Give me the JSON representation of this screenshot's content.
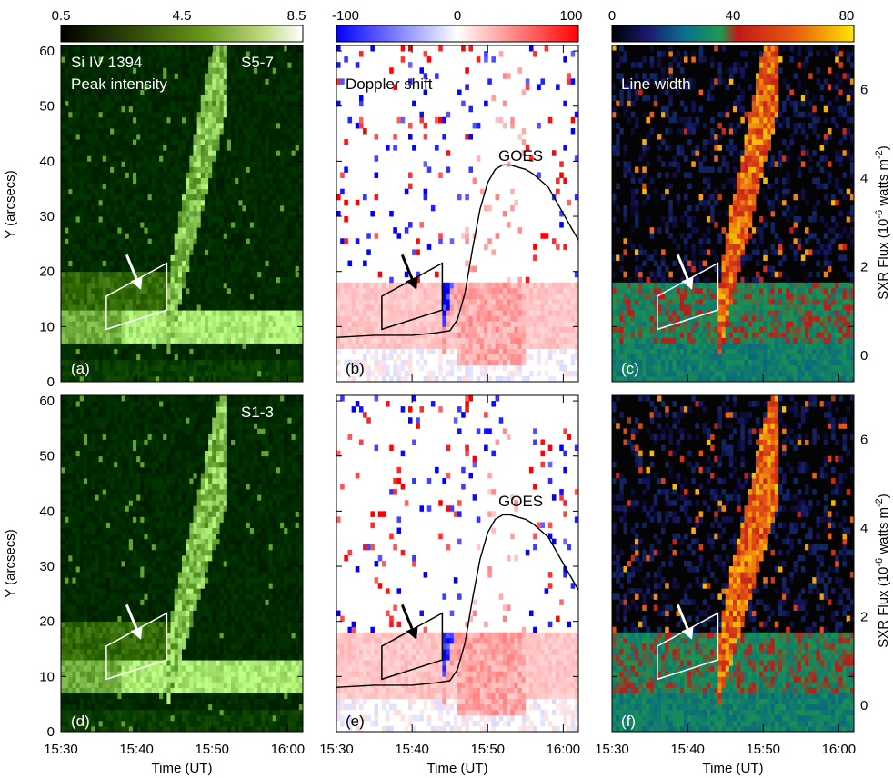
{
  "chart_data": [
    {
      "type": "heatmap",
      "panel": "(a)",
      "quantity": "Peak intensity",
      "line_label": "Si IV 1394",
      "slit_label": "S5-7",
      "colormap": "green",
      "colorbar": {
        "ticks": [
          "0.5",
          "4.5",
          "8.5"
        ],
        "range": [
          0.5,
          8.5
        ]
      },
      "xlabel": "Time (UT)",
      "ylabel": "Y (arcsecs)",
      "ylim": [
        0,
        61
      ],
      "yticks": [
        "0",
        "10",
        "20",
        "30",
        "40",
        "50",
        "60"
      ],
      "xticks": [
        "15:30",
        "15:40",
        "15:50",
        "16:00"
      ],
      "ribbons": [
        {
          "t_start": "15:38",
          "t_end": "16:02",
          "y_center": 10.5,
          "width": 4,
          "value": 8.0
        },
        {
          "t_start": "15:30",
          "t_end": "16:02",
          "y_center": 5,
          "width": 1,
          "value": 3.0
        }
      ],
      "ejecta": [
        {
          "t_start": "15:44",
          "t_end": "15:52",
          "y_start": 12,
          "y_end": 60,
          "value": 6.5
        }
      ],
      "arrow": {
        "from": [
          38.7,
          23
        ],
        "to": [
          40.5,
          17
        ]
      },
      "box": [
        [
          36,
          9.5
        ],
        [
          44,
          13
        ],
        [
          44,
          21.5
        ],
        [
          36,
          15.5
        ]
      ]
    },
    {
      "type": "heatmap",
      "panel": "(b)",
      "quantity": "Doppler shift",
      "colormap": "blue-white-red",
      "colorbar": {
        "ticks": [
          "-100",
          "0",
          "100"
        ],
        "range": [
          -100,
          100
        ]
      },
      "xlabel": "Time (UT)",
      "ylim": [
        0,
        61
      ],
      "xticks": [
        "15:30",
        "15:40",
        "15:50",
        "16:00"
      ],
      "ejecta": [
        {
          "t_start": "15:44",
          "t_end": "15:49",
          "y_start": 10,
          "y_end": 58,
          "value": -90
        },
        {
          "t_start": "15:47",
          "t_end": "15:55",
          "y_start": 5,
          "y_end": 45,
          "value": 35
        }
      ],
      "arrow": {
        "from": [
          38.7,
          23
        ],
        "to": [
          40.5,
          17
        ]
      },
      "box": [
        [
          36,
          9.5
        ],
        [
          44,
          13
        ],
        [
          44,
          21.5
        ],
        [
          36,
          15.5
        ]
      ],
      "goes_label": "GOES",
      "goes": {
        "t_min": [
          30,
          35,
          40,
          43,
          45,
          46,
          47,
          48,
          49,
          50,
          51,
          52,
          53,
          54,
          55,
          56,
          57,
          58,
          59,
          60,
          61,
          62
        ],
        "flux": [
          0.4,
          0.45,
          0.45,
          0.5,
          0.55,
          0.8,
          1.4,
          2.4,
          3.3,
          3.9,
          4.2,
          4.3,
          4.3,
          4.25,
          4.2,
          4.1,
          3.95,
          3.8,
          3.5,
          3.2,
          2.9,
          2.6
        ]
      }
    },
    {
      "type": "heatmap",
      "panel": "(c)",
      "quantity": "Line width",
      "colormap": "rainbow",
      "colorbar": {
        "ticks": [
          "0",
          "40",
          "80"
        ],
        "range": [
          0,
          80
        ]
      },
      "xlabel": "Time (UT)",
      "ylim": [
        0,
        61
      ],
      "xticks": [
        "15:30",
        "15:40",
        "15:50",
        "16:00"
      ],
      "y2label": "SXR Flux (10-6 watts m-2)",
      "y2ticks": [
        "0",
        "2",
        "4",
        "6"
      ],
      "y2lim": [
        -0.6,
        7.0
      ],
      "ejecta": [
        {
          "t_start": "15:44",
          "t_end": "15:50",
          "y_start": 6,
          "y_end": 60,
          "value": 60
        }
      ],
      "arrow": {
        "from": [
          38.7,
          23
        ],
        "to": [
          40.5,
          17
        ]
      },
      "box": [
        [
          36,
          9.5
        ],
        [
          44,
          13
        ],
        [
          44,
          21.5
        ],
        [
          36,
          15.5
        ]
      ]
    },
    {
      "type": "heatmap",
      "panel": "(d)",
      "quantity": "Peak intensity",
      "slit_label": "S1-3",
      "colormap": "green",
      "xlabel": "Time (UT)",
      "ylabel": "Y (arcsecs)",
      "ylim": [
        0,
        61
      ],
      "yticks": [
        "0",
        "10",
        "20",
        "30",
        "40",
        "50",
        "60"
      ],
      "xticks": [
        "15:30",
        "15:40",
        "15:50",
        "16:00"
      ],
      "arrow": {
        "from": [
          38.7,
          23
        ],
        "to": [
          40.5,
          17
        ]
      },
      "box": [
        [
          36,
          9.5
        ],
        [
          44,
          13
        ],
        [
          44,
          21.5
        ],
        [
          36,
          15.5
        ]
      ]
    },
    {
      "type": "heatmap",
      "panel": "(e)",
      "quantity": "Doppler shift",
      "colormap": "blue-white-red",
      "xlabel": "Time (UT)",
      "ylim": [
        0,
        61
      ],
      "xticks": [
        "15:30",
        "15:40",
        "15:50",
        "16:00"
      ],
      "arrow": {
        "from": [
          38.7,
          23
        ],
        "to": [
          40.5,
          17
        ]
      },
      "box": [
        [
          36,
          9.5
        ],
        [
          44,
          13
        ],
        [
          44,
          21.5
        ],
        [
          36,
          15.5
        ]
      ],
      "goes_label": "GOES"
    },
    {
      "type": "heatmap",
      "panel": "(f)",
      "quantity": "Line width",
      "colormap": "rainbow",
      "xlabel": "Time (UT)",
      "ylim": [
        0,
        61
      ],
      "xticks": [
        "15:30",
        "15:40",
        "15:50",
        "16:00"
      ],
      "y2label": "SXR Flux (10-6 watts m-2)",
      "y2ticks": [
        "0",
        "2",
        "4",
        "6"
      ],
      "y2lim": [
        -0.6,
        7.0
      ],
      "arrow": {
        "from": [
          38.7,
          23
        ],
        "to": [
          40.5,
          17
        ]
      },
      "box": [
        [
          36,
          9.5
        ],
        [
          44,
          13
        ],
        [
          44,
          21.5
        ],
        [
          36,
          15.5
        ]
      ]
    }
  ],
  "labels": {
    "si_iv": "Si IV 1394",
    "s57": "S5-7",
    "s13": "S1-3",
    "peak": "Peak intensity",
    "doppler": "Doppler shift",
    "width": "Line width",
    "goes": "GOES",
    "ylabel": "Y (arcsecs)",
    "xlabel": "Time (UT)",
    "sxr_a": "SXR Flux (10",
    "sxr_b": "-6",
    "sxr_c": " watts m",
    "sxr_d": "-2",
    "sxr_e": ")",
    "pa": "(a)",
    "pb": "(b)",
    "pc": "(c)",
    "pd": "(d)",
    "pe": "(e)",
    "pf": "(f)"
  },
  "colorbars": {
    "c1": [
      "0.5",
      "4.5",
      "8.5"
    ],
    "c2": [
      "-100",
      "0",
      "100"
    ],
    "c3": [
      "0",
      "40",
      "80"
    ]
  },
  "axes": {
    "yticks": [
      "0",
      "10",
      "20",
      "30",
      "40",
      "50",
      "60"
    ],
    "xticks": [
      "15:30",
      "15:40",
      "15:50",
      "16:00"
    ],
    "y2ticks": [
      "0",
      "2",
      "4",
      "6"
    ]
  }
}
